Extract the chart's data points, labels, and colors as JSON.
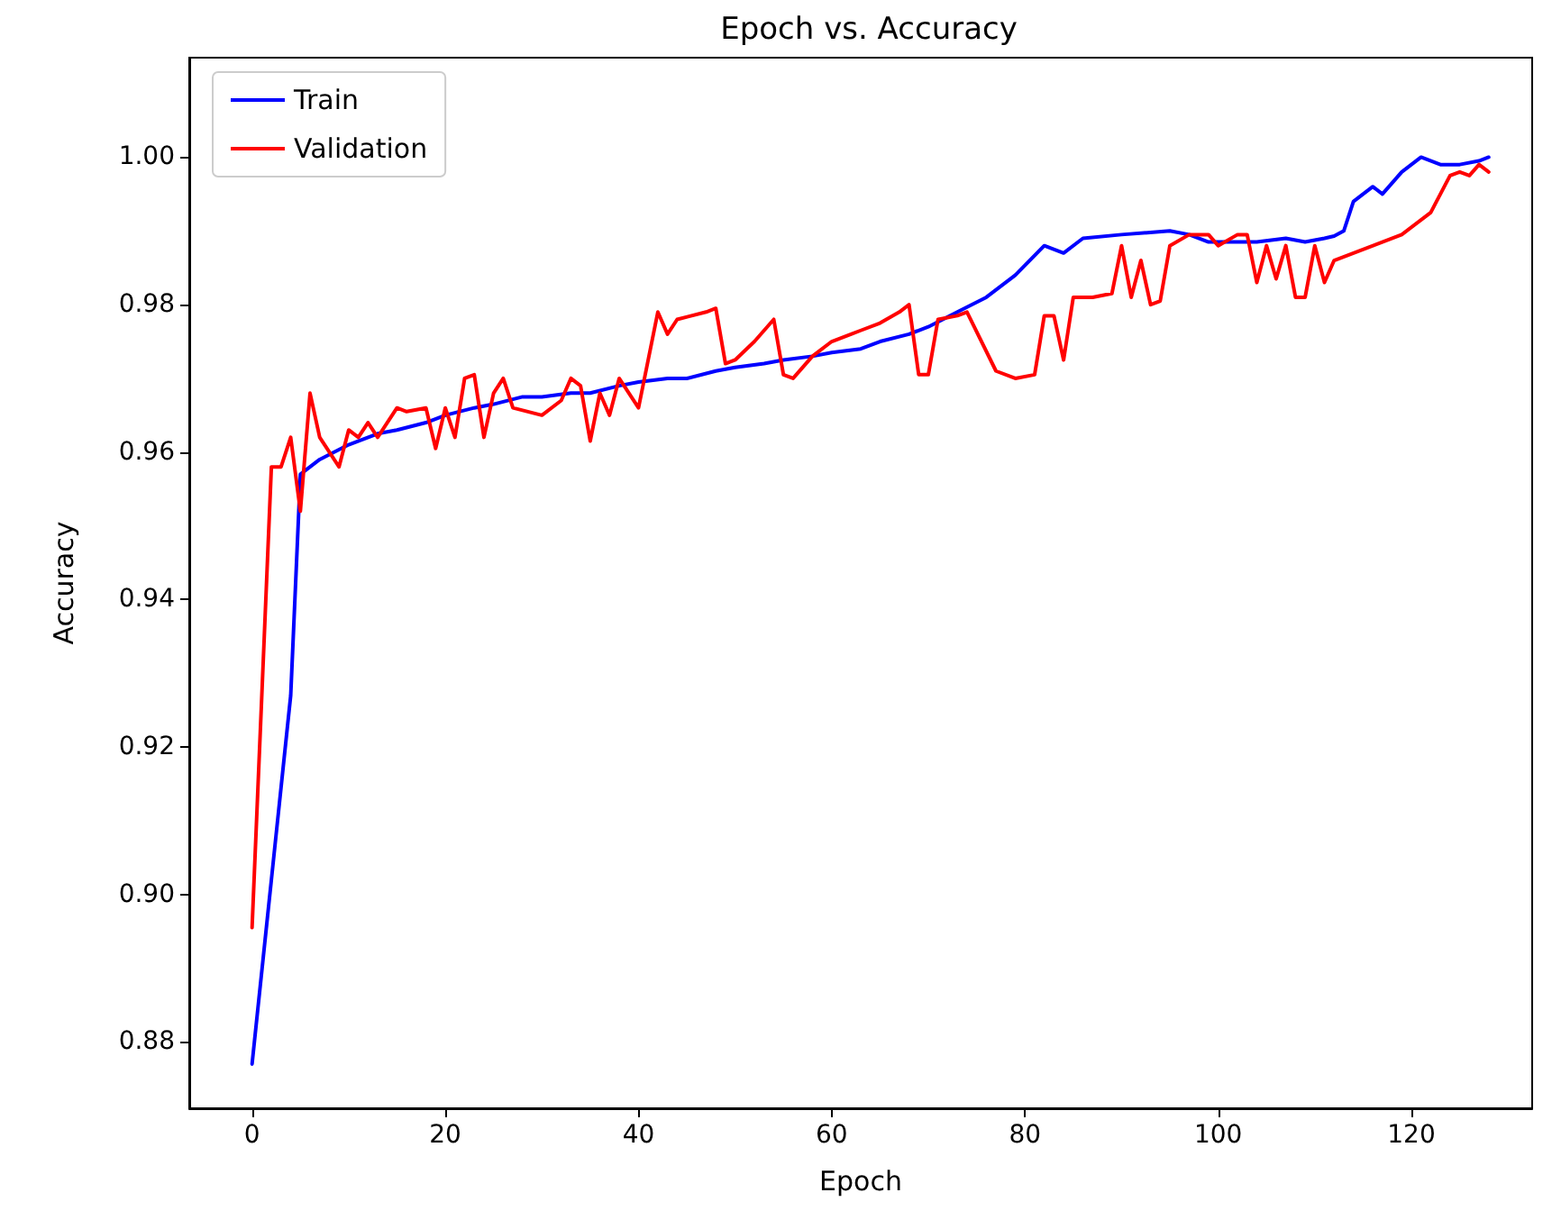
{
  "chart_data": {
    "type": "line",
    "title": "Epoch vs. Accuracy",
    "xlabel": "Epoch",
    "ylabel": "Accuracy",
    "series": [
      {
        "name": "Train",
        "color": "#0000ff",
        "x": [
          0,
          2,
          4,
          5,
          7,
          10,
          13,
          15,
          18,
          20,
          23,
          25,
          28,
          30,
          33,
          35,
          38,
          40,
          43,
          45,
          48,
          50,
          53,
          55,
          58,
          60,
          63,
          65,
          68,
          70,
          73,
          76,
          79,
          82,
          84,
          86,
          90,
          95,
          97,
          99,
          104,
          107,
          109,
          111,
          112,
          113,
          114,
          116,
          117,
          119,
          121,
          123,
          125,
          127,
          128
        ],
        "values": [
          0.877,
          0.902,
          0.927,
          0.957,
          0.959,
          0.961,
          0.9625,
          0.963,
          0.964,
          0.965,
          0.966,
          0.9665,
          0.9675,
          0.9675,
          0.968,
          0.968,
          0.969,
          0.9695,
          0.97,
          0.97,
          0.971,
          0.9715,
          0.972,
          0.9725,
          0.973,
          0.9735,
          0.974,
          0.975,
          0.976,
          0.977,
          0.979,
          0.981,
          0.984,
          0.988,
          0.987,
          0.989,
          0.9895,
          0.99,
          0.9895,
          0.9885,
          0.9885,
          0.989,
          0.9885,
          0.989,
          0.9893,
          0.99,
          0.994,
          0.996,
          0.995,
          0.998,
          1.0,
          0.999,
          0.999,
          0.9995,
          1.0
        ]
      },
      {
        "name": "Validation",
        "color": "#ff0000",
        "x": [
          0,
          2,
          3,
          4,
          5,
          6,
          7,
          9,
          10,
          11,
          12,
          13,
          15,
          16,
          18,
          19,
          20,
          21,
          22,
          23,
          24,
          25,
          26,
          27,
          30,
          32,
          33,
          34,
          35,
          36,
          37,
          38,
          40,
          42,
          43,
          44,
          47,
          48,
          49,
          50,
          52,
          54,
          55,
          56,
          58,
          60,
          62,
          63,
          65,
          67,
          68,
          69,
          70,
          71,
          73,
          74,
          77,
          79,
          81,
          82,
          83,
          84,
          85,
          87,
          89,
          90,
          91,
          92,
          93,
          94,
          95,
          97,
          99,
          100,
          102,
          103,
          104,
          105,
          106,
          107,
          108,
          109,
          110,
          111,
          112,
          119,
          122,
          124,
          125,
          126,
          127,
          128
        ],
        "values": [
          0.8955,
          0.958,
          0.958,
          0.962,
          0.952,
          0.968,
          0.962,
          0.958,
          0.963,
          0.962,
          0.964,
          0.962,
          0.966,
          0.9655,
          0.966,
          0.9605,
          0.966,
          0.962,
          0.97,
          0.9705,
          0.962,
          0.968,
          0.97,
          0.966,
          0.965,
          0.967,
          0.97,
          0.969,
          0.9615,
          0.968,
          0.965,
          0.97,
          0.966,
          0.979,
          0.976,
          0.978,
          0.979,
          0.9795,
          0.972,
          0.9725,
          0.975,
          0.978,
          0.9705,
          0.97,
          0.973,
          0.975,
          0.976,
          0.9765,
          0.9775,
          0.979,
          0.98,
          0.9705,
          0.9705,
          0.978,
          0.9785,
          0.979,
          0.971,
          0.97,
          0.9705,
          0.9785,
          0.9785,
          0.9725,
          0.981,
          0.981,
          0.9815,
          0.988,
          0.981,
          0.986,
          0.98,
          0.9805,
          0.988,
          0.9895,
          0.9895,
          0.988,
          0.9895,
          0.9895,
          0.983,
          0.988,
          0.9835,
          0.988,
          0.981,
          0.981,
          0.988,
          0.983,
          0.986,
          0.9895,
          0.9925,
          0.9975,
          0.998,
          0.9975,
          0.999,
          0.998
        ]
      }
    ],
    "xlim": [
      -6.5,
      132.5
    ],
    "xticks": [
      0,
      20,
      40,
      60,
      80,
      100,
      120
    ],
    "ylim": [
      0.871,
      1.0135
    ],
    "yticks": [
      {
        "value": 0.88,
        "label": "0.88"
      },
      {
        "value": 0.9,
        "label": "0.90"
      },
      {
        "value": 0.92,
        "label": "0.92"
      },
      {
        "value": 0.94,
        "label": "0.94"
      },
      {
        "value": 0.96,
        "label": "0.96"
      },
      {
        "value": 0.98,
        "label": "0.98"
      },
      {
        "value": 1.0,
        "label": "1.00"
      }
    ],
    "grid": false,
    "legend": "top left",
    "marker": "none",
    "line_style": "solid"
  }
}
